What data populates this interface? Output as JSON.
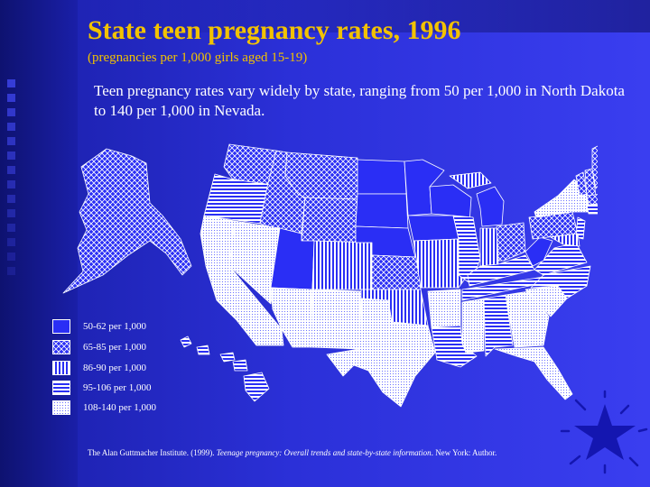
{
  "title": "State teen pregnancy rates, 1996",
  "subtitle": "(pregnancies per 1,000 girls aged 15-19)",
  "description": "Teen pregnancy rates vary widely by state, ranging from 50 per 1,000 in North Dakota to 140 per 1,000 in Nevada.",
  "legend": [
    {
      "label": "50-62 per 1,000",
      "pattern": "solid"
    },
    {
      "label": "65-85 per 1,000",
      "pattern": "crosshatch"
    },
    {
      "label": "86-90 per 1,000",
      "pattern": "vertical"
    },
    {
      "label": "95-106 per 1,000",
      "pattern": "horizontal"
    },
    {
      "label": "108-140 per 1,000",
      "pattern": "dots"
    }
  ],
  "citation": {
    "prefix": "The Alan Guttmacher Institute. (1999). ",
    "work": "Teenage pregnancy: Overall trends and state-by-state information",
    "suffix": ". New York: Author."
  },
  "colors": {
    "background": "#2b30d8",
    "title": "#f2c200",
    "text": "#ffffff",
    "solid_fill": "#2a2ef5"
  }
}
